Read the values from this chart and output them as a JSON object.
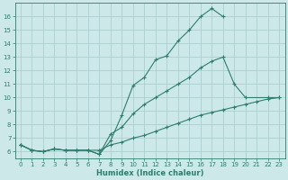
{
  "xlabel": "Humidex (Indice chaleur)",
  "bg_color": "#cce8e8",
  "line_color": "#2e7d6e",
  "grid_color": "#aacfcf",
  "xlim": [
    -0.5,
    23.5
  ],
  "ylim": [
    5.5,
    17.0
  ],
  "xtick_labels": [
    "0",
    "1",
    "2",
    "3",
    "4",
    "5",
    "6",
    "7",
    "8",
    "9",
    "10",
    "11",
    "12",
    "13",
    "14",
    "15",
    "16",
    "17",
    "18",
    "19",
    "20",
    "21",
    "22",
    "23"
  ],
  "ytick_labels": [
    "6",
    "7",
    "8",
    "9",
    "10",
    "11",
    "12",
    "13",
    "14",
    "15",
    "16"
  ],
  "ytick_vals": [
    6,
    7,
    8,
    9,
    10,
    11,
    12,
    13,
    14,
    15,
    16
  ],
  "xtick_vals": [
    0,
    1,
    2,
    3,
    4,
    5,
    6,
    7,
    8,
    9,
    10,
    11,
    12,
    13,
    14,
    15,
    16,
    17,
    18,
    19,
    20,
    21,
    22,
    23
  ],
  "line1_x": [
    0,
    1,
    2,
    3,
    4,
    5,
    6,
    7,
    8,
    9,
    10,
    11,
    12,
    13,
    14,
    15,
    16,
    17,
    18
  ],
  "line1_y": [
    6.5,
    6.1,
    6.0,
    6.2,
    6.1,
    6.1,
    6.1,
    5.8,
    6.8,
    8.7,
    10.9,
    11.5,
    12.8,
    13.1,
    14.2,
    15.0,
    16.0,
    16.6,
    16.0
  ],
  "line2_x": [
    0,
    1,
    2,
    3,
    4,
    5,
    6,
    7,
    8,
    9,
    10,
    11,
    12,
    13,
    14,
    15,
    16,
    17,
    18,
    19,
    20,
    22,
    23
  ],
  "line2_y": [
    6.5,
    6.1,
    6.0,
    6.2,
    6.1,
    6.1,
    6.1,
    5.8,
    7.3,
    7.8,
    8.8,
    9.5,
    10.0,
    10.5,
    11.0,
    11.5,
    12.2,
    12.7,
    13.0,
    11.0,
    10.0,
    10.0,
    10.0
  ],
  "line3_x": [
    0,
    1,
    2,
    3,
    4,
    5,
    6,
    7,
    8,
    9,
    10,
    11,
    12,
    13,
    14,
    15,
    16,
    17,
    18,
    19,
    20,
    21,
    22,
    23
  ],
  "line3_y": [
    6.5,
    6.1,
    6.0,
    6.2,
    6.1,
    6.1,
    6.1,
    6.1,
    6.5,
    6.7,
    7.0,
    7.2,
    7.5,
    7.8,
    8.1,
    8.4,
    8.7,
    8.9,
    9.1,
    9.3,
    9.5,
    9.7,
    9.9,
    10.0
  ]
}
